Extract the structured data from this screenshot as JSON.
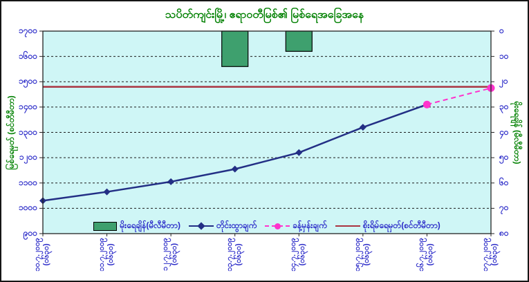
{
  "title": "သပိတ်ကျင်းမြို့၊ ဧရာဝတီမြစ်၏ မြစ်ရေအခြေအနေ",
  "axes": {
    "left_title": "မြစ်ရေမှတ် (စင်တီမီတာ)",
    "right_title": "မိုးရေချိန် (မီလီမီတာ)",
    "left_tick_labels": [
      "၁၇၀၀",
      "၁၆၀၀",
      "၁၅၀၀",
      "၁၄၀၀",
      "၁၃၀၀",
      "၁၂၀၀",
      "၁၁၀၀",
      "၁၀၀၀",
      "၉၀၀"
    ],
    "right_tick_labels": [
      "၀",
      "၁၀",
      "၂၀",
      "၃၀",
      "၄၀",
      "၅၀",
      "၆၀",
      "၇၀",
      "၈၀"
    ]
  },
  "legend": {
    "items": [
      {
        "label": "မိုးရေချိန်(မီလီမီတာ)",
        "swatch": "green-bar"
      },
      {
        "label": "တိုင်းထွာချက်",
        "swatch": "navy-line-diamond"
      },
      {
        "label": "ခန့်မှန်းချက်",
        "swatch": "magenta-dashed-dot"
      },
      {
        "label": "စိုးရိမ်ရေမှတ်(စင်တီမီတာ)",
        "swatch": "red-line"
      }
    ]
  },
  "colors": {
    "plot_bg": "#CFF6F6",
    "chart_bg": "#FFFFFF",
    "title_green": "#008000",
    "tick_label_blue": "#2A2AC8",
    "measured_navy": "#232F85",
    "forecast_magenta": "#FF33CC",
    "danger_red": "#AA3340",
    "rain_bar_green": "#3EA06E",
    "grid_line": "#1A1A1A"
  },
  "chart_data": {
    "type": "combo (bar + line)",
    "title": "သပိတ်ကျင်းမြို့၊ ဧရာဝတီမြစ်၏ မြစ်ရေအခြေအနေ",
    "categories": [
      {
        "date": "၁၀.၇.၂၀၀၉",
        "time": "(၀၆၃၀)",
        "date_latin": "10.7.2009"
      },
      {
        "date": "၁၁.၇.၂၀၀၉",
        "time": "(၀၆၃၀)",
        "date_latin": "11.7.2009"
      },
      {
        "date": "၁၂.၇.၂၀၀၉",
        "time": "(၀၆၃၀)",
        "date_latin": "12.7.2009"
      },
      {
        "date": "၁၃.၇.၂၀၀၉",
        "time": "(၀၆၃၀)",
        "date_latin": "13.7.2009"
      },
      {
        "date": "၁၄.၇.၂၀၀၉",
        "time": "(၀၆၃၀)",
        "date_latin": "14.7.2009"
      },
      {
        "date": "၁၅.၇.၂၀၀၉",
        "time": "(၀၆၃၀)",
        "date_latin": "15.7.2009"
      },
      {
        "date": "၁၆.၇.၂၀၀၉",
        "time": "(၀၆၃၀)",
        "date_latin": "16.7.2009"
      },
      {
        "date": "၁၇.၇.၂၀၀၉",
        "time": "(၀၆၃၀)",
        "date_latin": "17.7.2009"
      }
    ],
    "left_axis": {
      "title": "မြစ်ရေမှတ် (စင်တီမီတာ)",
      "min": 900,
      "max": 1700,
      "tick_step": 100,
      "unit": "cm"
    },
    "right_axis": {
      "title": "မိုးရေချိန် (မီလီမီတာ)",
      "min": 0,
      "max": 80,
      "tick_step": 10,
      "unit": "mm",
      "direction": "0 at top; bars hang downward from top edge"
    },
    "grid": "horizontal dashed black lines",
    "legend_position": "bottom inside plot area",
    "series": [
      {
        "name": "မိုးရေချိန်(မီလီမီတာ)",
        "type": "bar",
        "axis": "right",
        "values": [
          null,
          null,
          null,
          14,
          8,
          null,
          null,
          null
        ]
      },
      {
        "name": "တိုင်းထွာချက်",
        "type": "line",
        "axis": "left",
        "marker": "diamond",
        "values": [
          1030,
          1065,
          1105,
          1155,
          1220,
          1320,
          1410,
          null
        ]
      },
      {
        "name": "ခန့်မှန်းချက်",
        "type": "line",
        "style": "dashed",
        "axis": "left",
        "marker": "circle",
        "values": [
          null,
          null,
          null,
          null,
          null,
          null,
          1410,
          1475
        ]
      },
      {
        "name": "စိုးရိမ်ရေမှတ်(စင်တီမီတာ)",
        "type": "constant-line",
        "axis": "left",
        "value": 1480
      }
    ]
  }
}
